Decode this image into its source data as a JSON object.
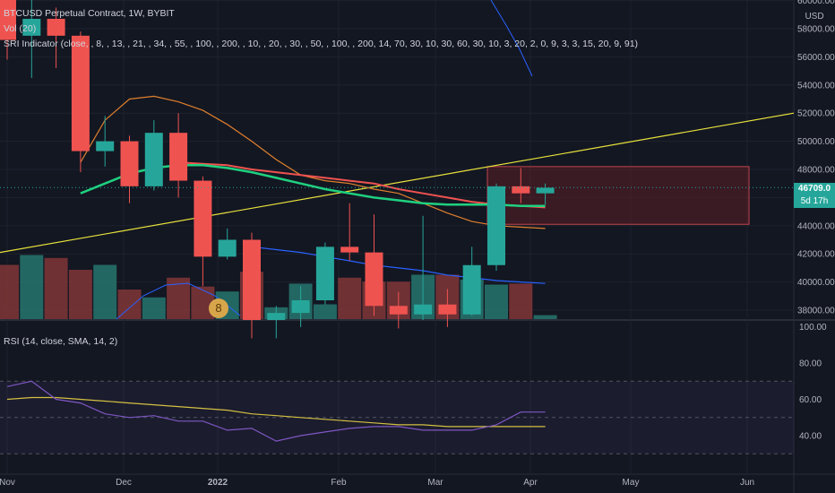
{
  "legend": {
    "title": "BTCUSD Perpetual Contract, 1W, BYBIT",
    "vol": "Vol (20)",
    "sri": "SRI Indicator (close, , 8, , 13, , 21, , 34, , 55, , 100, , 200, , 10, , 20, , 30, , 50, , 100, , 200, 14, 70, 30, 10, 30, 60, 30, 10, 3, 20, 2, 0, 9, 3, 3, 15, 20, 9, 91)",
    "rsi": "RSI (14, close, SMA, 14, 2)"
  },
  "price_axis": {
    "currency": "USD",
    "labels": [
      "60000.00",
      "58000.00",
      "56000.00",
      "54000.00",
      "52000.00",
      "50000.00",
      "48000.00",
      "46000.00",
      "44000.00",
      "42000.00",
      "40000.00",
      "38000.00"
    ],
    "current_price": "46709.0",
    "countdown": "5d 17h"
  },
  "rsi_axis": {
    "labels": [
      "100.00",
      "80.00",
      "60.00",
      "40.00"
    ]
  },
  "time_axis": {
    "labels": [
      "Nov",
      "Dec",
      "2022",
      "Feb",
      "Mar",
      "Apr",
      "May",
      "Jun"
    ]
  },
  "badge": "8",
  "colors": {
    "background": "#131722",
    "up": "#26a69a",
    "down": "#ef5350",
    "ma_green": "#1fd17f",
    "ma_red": "#ef5350",
    "ma_orange": "#e0802d",
    "ma_blue": "#2962ff",
    "trendline": "#e8e23c",
    "rsi_line": "#7e57c2",
    "rsi_sma": "#d4c043",
    "zone": "#6b2026"
  },
  "chart_data": {
    "type": "candlestick",
    "interval": "1W",
    "ylim": [
      37000,
      61000
    ],
    "candles": [
      {
        "o": 61200,
        "h": 66000,
        "l": 55800,
        "c": 57200
      },
      {
        "o": 57500,
        "h": 60200,
        "l": 54500,
        "c": 58700
      },
      {
        "o": 58700,
        "h": 59500,
        "l": 55200,
        "c": 57500
      },
      {
        "o": 57500,
        "h": 57800,
        "l": 47800,
        "c": 49300
      },
      {
        "o": 49300,
        "h": 51800,
        "l": 48200,
        "c": 50000
      },
      {
        "o": 50000,
        "h": 50400,
        "l": 45600,
        "c": 46800
      },
      {
        "o": 46800,
        "h": 51500,
        "l": 46500,
        "c": 50600
      },
      {
        "o": 50600,
        "h": 52000,
        "l": 46000,
        "c": 47200
      },
      {
        "o": 47200,
        "h": 47500,
        "l": 39700,
        "c": 41800
      },
      {
        "o": 41800,
        "h": 43800,
        "l": 41600,
        "c": 43000
      },
      {
        "o": 43000,
        "h": 43500,
        "l": 36000,
        "c": 37300
      },
      {
        "o": 37300,
        "h": 38300,
        "l": 36000,
        "c": 37800
      },
      {
        "o": 37800,
        "h": 39700,
        "l": 36800,
        "c": 38700
      },
      {
        "o": 38700,
        "h": 42800,
        "l": 38400,
        "c": 42500
      },
      {
        "o": 42500,
        "h": 45600,
        "l": 41500,
        "c": 42100
      },
      {
        "o": 42100,
        "h": 44800,
        "l": 37600,
        "c": 38300
      },
      {
        "o": 38300,
        "h": 39300,
        "l": 36700,
        "c": 37700
      },
      {
        "o": 37700,
        "h": 44700,
        "l": 37300,
        "c": 38400
      },
      {
        "o": 38400,
        "h": 39500,
        "l": 36800,
        "c": 37700
      },
      {
        "o": 37700,
        "h": 42500,
        "l": 37600,
        "c": 41200
      },
      {
        "o": 41200,
        "h": 47000,
        "l": 40800,
        "c": 46800
      },
      {
        "o": 46800,
        "h": 48100,
        "l": 45600,
        "c": 46300
      },
      {
        "o": 46300,
        "h": 47000,
        "l": 45500,
        "c": 46700
      }
    ],
    "volume": [
      0.55,
      0.65,
      0.62,
      0.5,
      0.55,
      0.3,
      0.22,
      0.42,
      0.33,
      0.28,
      0.48,
      0.12,
      0.36,
      0.15,
      0.42,
      0.38,
      0.38,
      0.45,
      0.45,
      0.4,
      0.35,
      0.36,
      0.04
    ],
    "rsi": [
      67,
      70,
      60,
      58,
      52,
      50,
      51,
      48,
      48,
      43,
      44,
      37,
      40,
      42,
      44,
      45,
      45,
      43,
      43,
      43,
      46,
      53,
      53
    ],
    "rsi_sma": [
      60,
      61,
      61,
      60,
      59,
      58,
      57,
      56,
      55,
      54,
      52,
      51,
      50,
      49,
      48,
      47,
      46,
      46,
      45,
      45,
      45,
      45,
      45
    ],
    "ma_green": [
      null,
      null,
      null,
      46300,
      47000,
      47700,
      48100,
      48300,
      48300,
      48100,
      47800,
      47400,
      47000,
      46600,
      46300,
      46000,
      45800,
      45600,
      45500,
      45500,
      45500,
      45400,
      45400
    ],
    "ma_red": [
      null,
      null,
      null,
      null,
      null,
      null,
      null,
      48500,
      48400,
      48300,
      48000,
      47800,
      47600,
      47400,
      47200,
      47000,
      46600,
      46300,
      46000,
      45700,
      45500,
      45400,
      45300
    ],
    "ma_orange": [
      null,
      null,
      null,
      48500,
      51500,
      53000,
      53200,
      52800,
      52200,
      51200,
      50000,
      48700,
      47600,
      47200,
      47000,
      46600,
      46300,
      45600,
      44900,
      44300,
      44000,
      43900,
      43800
    ],
    "ma_blue": [
      null,
      null,
      null,
      null,
      null,
      null,
      null,
      null,
      null,
      null,
      42500,
      42300,
      42100,
      41800,
      41500,
      41200,
      41000,
      40800,
      40500,
      40300,
      40100,
      40000,
      39900
    ],
    "zone": {
      "low": 44100,
      "high": 48200
    },
    "trendline": [
      {
        "x": 0,
        "y": 42100
      },
      {
        "x": 31,
        "y": 52000
      }
    ]
  }
}
